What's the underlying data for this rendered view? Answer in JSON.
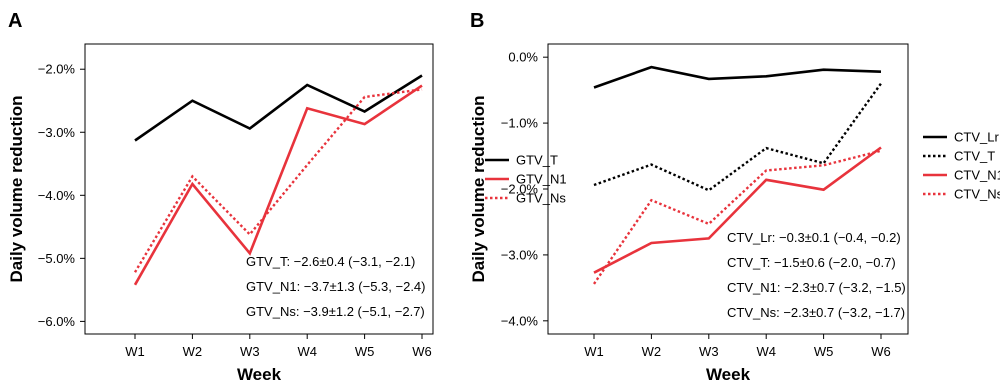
{
  "chart_data": [
    {
      "type": "line",
      "panel_label": "A",
      "categories": [
        "W1",
        "W2",
        "W3",
        "W4",
        "W5",
        "W6"
      ],
      "xlabel": "Week",
      "ylabel": "Daily volume reduction",
      "ylim": [
        -6.2,
        -1.6
      ],
      "yticks": [
        -6.0,
        -5.0,
        -4.0,
        -3.0,
        -2.0
      ],
      "ytick_labels": [
        "−6.0%",
        "−5.0%",
        "−4.0%",
        "−3.0%",
        "−2.0%"
      ],
      "grid": false,
      "legend_position": "right",
      "series": [
        {
          "name": "GTV_T",
          "values": [
            -3.13,
            -2.5,
            -2.94,
            -2.25,
            -2.67,
            -2.1
          ],
          "color": "#000000",
          "style": "solid"
        },
        {
          "name": "GTV_N1",
          "values": [
            -5.42,
            -3.82,
            -4.92,
            -2.62,
            -2.87,
            -2.26
          ],
          "color": "#e8333c",
          "style": "solid"
        },
        {
          "name": "GTV_Ns",
          "values": [
            -5.22,
            -3.7,
            -4.62,
            -3.52,
            -2.44,
            -2.32
          ],
          "color": "#e8333c",
          "style": "dotted"
        }
      ],
      "annotations": [
        "GTV_T: −2.6±0.4 (−3.1, −2.1)",
        "GTV_N1: −3.7±1.3 (−5.3, −2.4)",
        "GTV_Ns: −3.9±1.2 (−5.1, −2.7)"
      ]
    },
    {
      "type": "line",
      "panel_label": "B",
      "categories": [
        "W1",
        "W2",
        "W3",
        "W4",
        "W5",
        "W6"
      ],
      "xlabel": "Week",
      "ylabel": "Daily volume reduction",
      "ylim": [
        -4.2,
        0.2
      ],
      "yticks": [
        -4.0,
        -3.0,
        -2.0,
        -1.0,
        0.0
      ],
      "ytick_labels": [
        "−4.0%",
        "−3.0%",
        "−2.0%",
        "−1.0%",
        "0.0%"
      ],
      "grid": false,
      "legend_position": "right, outside",
      "series": [
        {
          "name": "CTV_Lr",
          "values": [
            -0.46,
            -0.15,
            -0.33,
            -0.29,
            -0.19,
            -0.22
          ],
          "color": "#000000",
          "style": "solid"
        },
        {
          "name": "CTV_T",
          "values": [
            -1.94,
            -1.63,
            -2.02,
            -1.38,
            -1.61,
            -0.4
          ],
          "color": "#000000",
          "style": "dotted"
        },
        {
          "name": "CTV_N1",
          "values": [
            -3.27,
            -2.82,
            -2.75,
            -1.86,
            -2.01,
            -1.37
          ],
          "color": "#e8333c",
          "style": "solid"
        },
        {
          "name": "CTV_Ns",
          "values": [
            -3.44,
            -2.17,
            -2.53,
            -1.72,
            -1.64,
            -1.42
          ],
          "color": "#e8333c",
          "style": "dotted"
        }
      ],
      "annotations": [
        "CTV_Lr: −0.3±0.1 (−0.4, −0.2)",
        "CTV_T: −1.5±0.6 (−2.0, −0.7)",
        "CTV_N1: −2.3±0.7 (−3.2, −1.5)",
        "CTV_Ns: −2.3±0.7 (−3.2, −1.7)"
      ]
    }
  ]
}
